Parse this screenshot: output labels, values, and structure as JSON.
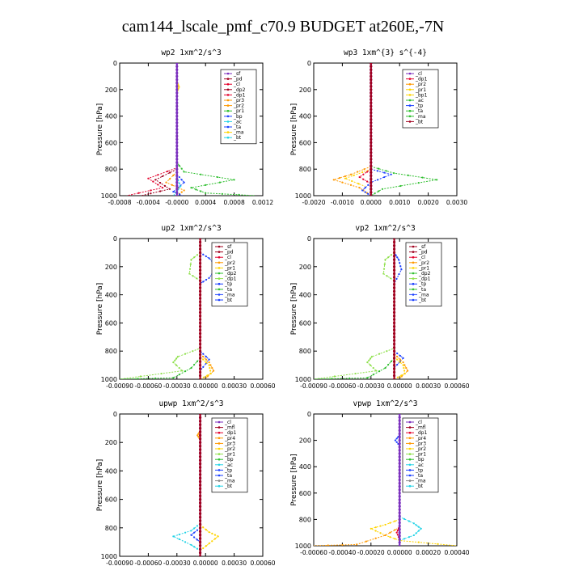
{
  "title": "cam144_lscale_pmf_c70.9  BUDGET at260E,-7N",
  "colors": {
    "background": "#ffffff",
    "axis": "#000000",
    "purple": "#7b2fbe",
    "darkred": "#a0001e",
    "red": "#e4002b",
    "orange": "#ff9900",
    "yellow": "#ffd400",
    "green": "#2fbf2f",
    "lightgreen": "#8ee04a",
    "blue": "#1a3fff",
    "cyan": "#22d3e6",
    "gray": "#888888"
  },
  "chart_data": [
    {
      "type": "line",
      "title": "wp2   1xm^2/s^3",
      "ylabel": "Pressure [hPa]",
      "ylim": [
        1000,
        0
      ],
      "xlim": [
        -0.0008,
        0.0012
      ],
      "xticks": [
        "-0.0008",
        "-0.0004",
        "-0.0000",
        "0.0004",
        "0.0008",
        "0.0012"
      ],
      "yticks": [
        "0",
        "200",
        "400",
        "600",
        "800",
        "1000"
      ],
      "legend": [
        "_sf",
        "_pd",
        "_cl",
        "_dp2",
        "_dp1",
        "_pr3",
        "_pr2",
        "_pr1",
        "_bp",
        "_ac",
        "_ta",
        "_ma",
        "_bt"
      ],
      "series": [
        {
          "name": "_pr1",
          "color": "green",
          "points": [
            [
              0,
              100
            ],
            [
              0,
              750
            ],
            [
              0.0001,
              820
            ],
            [
              0.0008,
              880
            ],
            [
              0.0002,
              940
            ],
            [
              0.0004,
              980
            ],
            [
              0.0011,
              1000
            ]
          ]
        },
        {
          "name": "_dp1",
          "color": "red",
          "points": [
            [
              0,
              100
            ],
            [
              0,
              790
            ],
            [
              -0.0004,
              870
            ],
            [
              -0.0002,
              940
            ],
            [
              -0.0007,
              1000
            ]
          ]
        },
        {
          "name": "_dp2",
          "color": "darkred",
          "points": [
            [
              0,
              800
            ],
            [
              -0.0003,
              880
            ],
            [
              -0.0001,
              950
            ],
            [
              -0.0005,
              1000
            ]
          ]
        },
        {
          "name": "_pr2",
          "color": "orange",
          "points": [
            [
              0,
              820
            ],
            [
              -0.00015,
              900
            ],
            [
              0.0001,
              960
            ],
            [
              0,
              1000
            ]
          ]
        },
        {
          "name": "_bp",
          "color": "blue",
          "points": [
            [
              0,
              840
            ],
            [
              0.0001,
              900
            ],
            [
              -5e-05,
              970
            ],
            [
              8e-05,
              1000
            ]
          ]
        },
        {
          "name": "_ac",
          "color": "cyan",
          "points": [
            [
              0,
              860
            ],
            [
              5e-05,
              930
            ],
            [
              -5e-05,
              1000
            ]
          ]
        },
        {
          "name": "_ma",
          "color": "yellow",
          "points": [
            [
              0,
              140
            ],
            [
              3e-05,
              180
            ],
            [
              0,
              220
            ]
          ]
        },
        {
          "name": "_sf",
          "color": "purple",
          "points": [
            [
              0,
              0
            ],
            [
              0,
              1000
            ]
          ]
        }
      ]
    },
    {
      "type": "line",
      "title": "wp3   1xm^{3} s^{-4}",
      "ylabel": "Pressure [hPa]",
      "ylim": [
        1000,
        0
      ],
      "xlim": [
        -0.002,
        0.003
      ],
      "xticks": [
        "-0.0020",
        "-0.0010",
        "0.0000",
        "0.0010",
        "0.0020",
        "0.0030"
      ],
      "yticks": [
        "0",
        "200",
        "400",
        "600",
        "800",
        "1000"
      ],
      "legend": [
        "_cl",
        "_dp1",
        "_pr2",
        "_pr1",
        "_bp1",
        "_ac",
        "_tp",
        "_ta",
        "_ma",
        "_bt"
      ],
      "series": [
        {
          "name": "_ac",
          "color": "green",
          "points": [
            [
              0,
              780
            ],
            [
              0.0008,
              830
            ],
            [
              0.0023,
              880
            ],
            [
              0.0004,
              950
            ],
            [
              0,
              1000
            ]
          ]
        },
        {
          "name": "_pr2",
          "color": "orange",
          "points": [
            [
              0,
              780
            ],
            [
              -0.0007,
              840
            ],
            [
              -0.0013,
              880
            ],
            [
              -0.0004,
              940
            ],
            [
              0,
              1000
            ]
          ]
        },
        {
          "name": "_pr1",
          "color": "yellow",
          "points": [
            [
              0,
              800
            ],
            [
              -0.0009,
              870
            ],
            [
              -0.0002,
              930
            ]
          ]
        },
        {
          "name": "_dp1",
          "color": "red",
          "points": [
            [
              0,
              800
            ],
            [
              -0.0004,
              860
            ],
            [
              0,
              910
            ]
          ]
        },
        {
          "name": "_tp",
          "color": "blue",
          "points": [
            [
              0,
              800
            ],
            [
              0.0007,
              840
            ],
            [
              0,
              900
            ],
            [
              -0.0003,
              960
            ],
            [
              0,
              1000
            ]
          ]
        },
        {
          "name": "_cl",
          "color": "purple",
          "points": [
            [
              0,
              0
            ],
            [
              0,
              1000
            ]
          ]
        },
        {
          "name": "_bt",
          "color": "darkred",
          "points": [
            [
              0,
              0
            ],
            [
              0,
              1000
            ]
          ]
        }
      ]
    },
    {
      "type": "line",
      "title": "up2   1xm^2/s^3",
      "ylabel": "Pressure [hPa]",
      "ylim": [
        1000,
        0
      ],
      "xlim": [
        -0.0009,
        0.0007
      ],
      "xticks": [
        "-0.00090",
        "-0.00060",
        "-0.00030",
        "0.00000",
        "0.00030",
        "0.00060"
      ],
      "yticks": [
        "0",
        "200",
        "400",
        "600",
        "800",
        "1000"
      ],
      "legend": [
        "_sf",
        "_pd",
        "_cl",
        "_pr2",
        "_pr1",
        "_dp2",
        "_dp1",
        "_tp",
        "_ta",
        "_ma",
        "_bt"
      ],
      "series": [
        {
          "name": "_dp1",
          "color": "lightgreen",
          "points": [
            [
              0,
              100
            ],
            [
              -0.0001,
              150
            ],
            [
              -0.00012,
              250
            ],
            [
              0,
              300
            ],
            [
              0,
              780
            ],
            [
              -0.00025,
              840
            ],
            [
              -0.0003,
              880
            ],
            [
              -0.0002,
              940
            ],
            [
              -0.0009,
              1000
            ]
          ]
        },
        {
          "name": "_tp",
          "color": "blue",
          "points": [
            [
              0,
              100
            ],
            [
              0.0001,
              140
            ],
            [
              0.0002,
              200
            ],
            [
              0.0001,
              280
            ],
            [
              0,
              320
            ],
            [
              0,
              800
            ],
            [
              0.0001,
              860
            ],
            [
              0,
              940
            ]
          ]
        },
        {
          "name": "_pr2",
          "color": "orange",
          "points": [
            [
              0,
              820
            ],
            [
              0.0001,
              880
            ],
            [
              0.00015,
              940
            ],
            [
              5e-05,
              1000
            ]
          ]
        },
        {
          "name": "_pr1",
          "color": "yellow",
          "points": [
            [
              0,
              840
            ],
            [
              0.0001,
              900
            ],
            [
              0.00012,
              960
            ],
            [
              0,
              1000
            ]
          ]
        },
        {
          "name": "_dp2",
          "color": "green",
          "points": [
            [
              0,
              850
            ],
            [
              -0.0001,
              920
            ],
            [
              -0.0003,
              990
            ],
            [
              -0.0009,
              1000
            ]
          ]
        },
        {
          "name": "_sf",
          "color": "darkred",
          "points": [
            [
              0,
              0
            ],
            [
              0,
              1000
            ]
          ]
        }
      ]
    },
    {
      "type": "line",
      "title": "vp2   1xm^2/s^3",
      "ylabel": "Pressure [hPa]",
      "ylim": [
        1000,
        0
      ],
      "xlim": [
        -0.0009,
        0.0007
      ],
      "xticks": [
        "-0.00090",
        "-0.00060",
        "-0.00030",
        "0.00000",
        "0.00030",
        "0.00060"
      ],
      "yticks": [
        "0",
        "200",
        "400",
        "600",
        "800",
        "1000"
      ],
      "legend": [
        "_sf",
        "_pd",
        "_cl",
        "_pr2",
        "_pr1",
        "_dp2",
        "_dp1",
        "_tp",
        "_ta",
        "_ma",
        "_bt"
      ],
      "series": [
        {
          "name": "_dp1",
          "color": "lightgreen",
          "points": [
            [
              0,
              100
            ],
            [
              -0.0001,
              150
            ],
            [
              -0.00012,
              250
            ],
            [
              0,
              300
            ],
            [
              0,
              780
            ],
            [
              -0.00025,
              840
            ],
            [
              -0.0003,
              880
            ],
            [
              -0.0002,
              940
            ],
            [
              -0.0009,
              1000
            ]
          ]
        },
        {
          "name": "_tp",
          "color": "blue",
          "points": [
            [
              0,
              100
            ],
            [
              5e-05,
              150
            ],
            [
              8e-05,
              220
            ],
            [
              0,
              320
            ],
            [
              0,
              800
            ],
            [
              0.0001,
              850
            ],
            [
              0,
              920
            ]
          ]
        },
        {
          "name": "_pr2",
          "color": "orange",
          "points": [
            [
              0,
              820
            ],
            [
              0.0001,
              880
            ],
            [
              0.00015,
              940
            ],
            [
              5e-05,
              1000
            ]
          ]
        },
        {
          "name": "_pr1",
          "color": "yellow",
          "points": [
            [
              0,
              840
            ],
            [
              0.0001,
              900
            ],
            [
              0.00012,
              960
            ],
            [
              0,
              1000
            ]
          ]
        },
        {
          "name": "_dp2",
          "color": "green",
          "points": [
            [
              0,
              850
            ],
            [
              -0.0001,
              920
            ],
            [
              -0.0003,
              990
            ],
            [
              -0.0009,
              1000
            ]
          ]
        },
        {
          "name": "_sf",
          "color": "darkred",
          "points": [
            [
              0,
              0
            ],
            [
              0,
              1000
            ]
          ]
        }
      ]
    },
    {
      "type": "line",
      "title": "upwp   1xm^2/s^3",
      "ylabel": "Pressure [hPa]",
      "ylim": [
        1000,
        0
      ],
      "xlim": [
        -0.0009,
        0.0007
      ],
      "xticks": [
        "-0.00090",
        "-0.00060",
        "-0.00030",
        "0.00000",
        "0.00030",
        "0.00060"
      ],
      "yticks": [
        "0",
        "200",
        "400",
        "600",
        "800",
        "1000"
      ],
      "legend": [
        "_cl",
        "_mfl",
        "_dp1",
        "_pr4",
        "_pr3",
        "_pr2",
        "_pr1",
        "_bp",
        "_ac",
        "_tp",
        "_ta",
        "_ma",
        "_bt"
      ],
      "series": [
        {
          "name": "_pr2",
          "color": "yellow",
          "points": [
            [
              0,
              780
            ],
            [
              0.0001,
              830
            ],
            [
              0.0002,
              860
            ],
            [
              0.0001,
              910
            ],
            [
              0,
              960
            ]
          ]
        },
        {
          "name": "_ac",
          "color": "cyan",
          "points": [
            [
              0,
              770
            ],
            [
              -0.0001,
              820
            ],
            [
              -0.0003,
              860
            ],
            [
              -0.0001,
              920
            ],
            [
              0,
              960
            ]
          ]
        },
        {
          "name": "_tp",
          "color": "blue",
          "points": [
            [
              0,
              800
            ],
            [
              -0.0001,
              850
            ],
            [
              0,
              900
            ]
          ]
        },
        {
          "name": "_pr3",
          "color": "orange",
          "points": [
            [
              0,
              120
            ],
            [
              -3e-05,
              150
            ],
            [
              0,
              180
            ]
          ]
        },
        {
          "name": "_cl",
          "color": "purple",
          "points": [
            [
              0,
              0
            ],
            [
              0,
              1000
            ]
          ]
        },
        {
          "name": "_mfl",
          "color": "darkred",
          "points": [
            [
              0,
              0
            ],
            [
              0,
              1000
            ]
          ]
        }
      ]
    },
    {
      "type": "line",
      "title": "vpwp   1xm^2/s^3",
      "ylabel": "Pressure [hPa]",
      "ylim": [
        1000,
        0
      ],
      "xlim": [
        -0.0006,
        0.0004
      ],
      "xticks": [
        "-0.00060",
        "-0.00040",
        "-0.00020",
        "0.00000",
        "0.00020",
        "0.00040"
      ],
      "yticks": [
        "0",
        "200",
        "400",
        "600",
        "800",
        "1000"
      ],
      "legend": [
        "_cl",
        "_mfl",
        "_dp1",
        "_pr4",
        "_pr3",
        "_pr2",
        "_pr1",
        "_bp",
        "_ac",
        "_tp",
        "_ta",
        "_ma",
        "_bt"
      ],
      "series": [
        {
          "name": "_pr2",
          "color": "yellow",
          "points": [
            [
              0,
              800
            ],
            [
              -0.0001,
              840
            ],
            [
              -0.0002,
              870
            ],
            [
              -0.0001,
              920
            ],
            [
              0,
              960
            ],
            [
              0.0004,
              1000
            ]
          ]
        },
        {
          "name": "_ac",
          "color": "cyan",
          "points": [
            [
              0,
              780
            ],
            [
              0.0001,
              830
            ],
            [
              0.00015,
              870
            ],
            [
              0.0001,
              920
            ],
            [
              0,
              960
            ]
          ]
        },
        {
          "name": "_tp",
          "color": "blue",
          "points": [
            [
              0,
              160
            ],
            [
              -3e-05,
              200
            ],
            [
              0,
              240
            ]
          ]
        },
        {
          "name": "_pr3",
          "color": "orange",
          "points": [
            [
              0,
              860
            ],
            [
              -0.0001,
              920
            ],
            [
              -0.0003,
              990
            ],
            [
              -0.0006,
              1000
            ]
          ]
        },
        {
          "name": "_dp1",
          "color": "red",
          "points": [
            [
              0,
              850
            ],
            [
              -2e-05,
              900
            ],
            [
              0,
              950
            ]
          ]
        },
        {
          "name": "_cl",
          "color": "purple",
          "points": [
            [
              0,
              0
            ],
            [
              0,
              1000
            ]
          ]
        }
      ]
    }
  ]
}
